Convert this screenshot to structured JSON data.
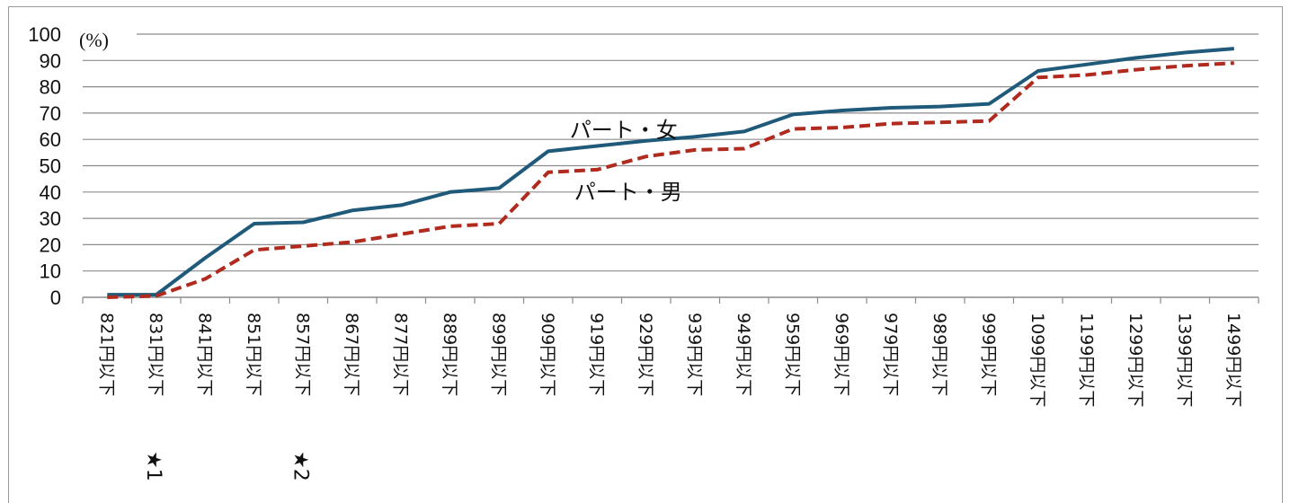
{
  "chart_data": {
    "type": "line",
    "y_unit": "(%)",
    "ylim": [
      0,
      100
    ],
    "y_ticks": [
      0,
      10,
      20,
      30,
      40,
      50,
      60,
      70,
      80,
      90,
      100
    ],
    "grid": true,
    "categories": [
      "821円以下",
      "831円以下",
      "841円以下",
      "851円以下",
      "857円以下",
      "867円以下",
      "877円以下",
      "889円以下",
      "899円以下",
      "909円以下",
      "919円以下",
      "929円以下",
      "939円以下",
      "949円以下",
      "959円以下",
      "969円以下",
      "979円以下",
      "989円以下",
      "999円以下",
      "1099円以下",
      "1199円以下",
      "1299円以下",
      "1399円以下",
      "1499円以下"
    ],
    "category_notes": [
      {
        "index": 1,
        "label": "★1"
      },
      {
        "index": 4,
        "label": "★2"
      }
    ],
    "series": [
      {
        "name": "パート・女",
        "color": "#1f5a7a",
        "style": "solid",
        "values": [
          1,
          1,
          15,
          28,
          28.5,
          33,
          35,
          40,
          41.5,
          55.5,
          57.5,
          59.5,
          61,
          63,
          69.5,
          71,
          72,
          72.5,
          73.5,
          86,
          88.5,
          91,
          93,
          94.5
        ]
      },
      {
        "name": "パート・男",
        "color": "#b02a1e",
        "style": "dashed",
        "values": [
          0,
          0.5,
          7,
          18,
          19.5,
          21,
          24,
          27,
          28,
          47.5,
          48.5,
          53.5,
          56,
          56.5,
          64,
          64.5,
          66,
          66.5,
          67,
          83.5,
          84.5,
          86.5,
          88,
          89
        ]
      }
    ]
  }
}
